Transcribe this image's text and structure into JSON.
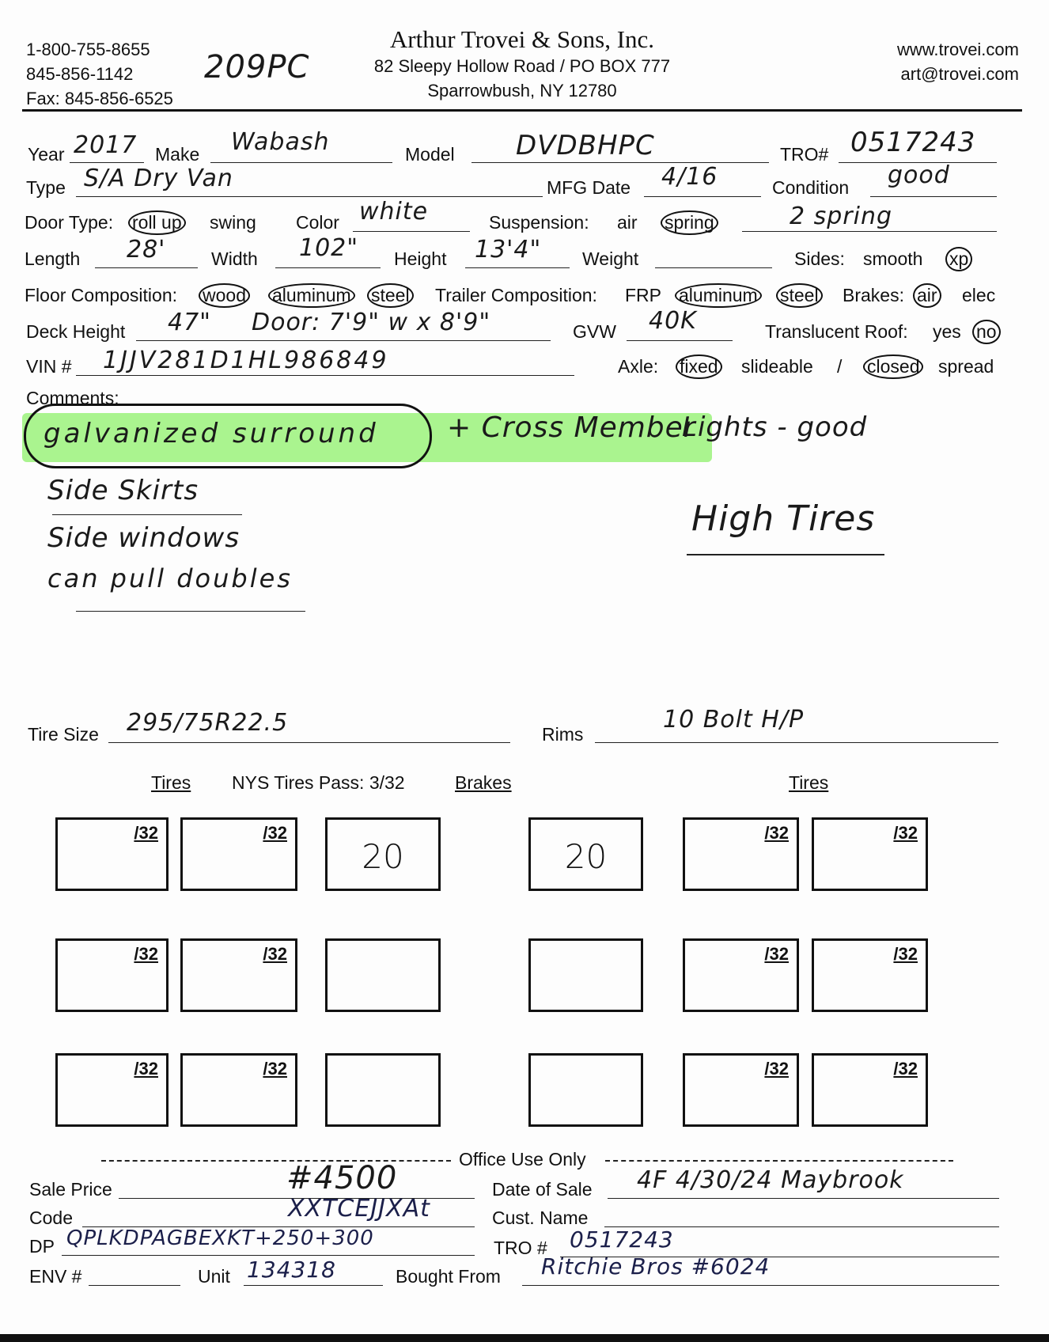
{
  "header": {
    "phone1": "1-800-755-8655",
    "phone2": "845-856-1142",
    "fax": "Fax: 845-856-6525",
    "handwritten_code": "209PC",
    "company": "Arthur Trovei & Sons, Inc.",
    "address1": "82 Sleepy Hollow Road / PO BOX 777",
    "address2": "Sparrowbush, NY 12780",
    "website": "www.trovei.com",
    "email": "art@trovei.com"
  },
  "fields": {
    "year": {
      "label": "Year",
      "value": "2017"
    },
    "make": {
      "label": "Make",
      "value": "Wabash"
    },
    "model": {
      "label": "Model",
      "value": "DVDBHPC"
    },
    "tro": {
      "label": "TRO#",
      "value": "0517243"
    },
    "type": {
      "label": "Type",
      "value": "S/A Dry Van"
    },
    "mfg_date": {
      "label": "MFG Date",
      "value": "4/16"
    },
    "condition": {
      "label": "Condition",
      "value": "good"
    },
    "door_type": {
      "label": "Door Type:",
      "options": [
        "roll up",
        "swing"
      ],
      "selected": "roll up"
    },
    "color": {
      "label": "Color",
      "value": "white"
    },
    "suspension": {
      "label": "Suspension:",
      "options": [
        "air",
        "spring"
      ],
      "selected": "spring",
      "value": "2 spring"
    },
    "length": {
      "label": "Length",
      "value": "28'"
    },
    "width": {
      "label": "Width",
      "value": "102\""
    },
    "height": {
      "label": "Height",
      "value": "13'4\""
    },
    "weight": {
      "label": "Weight",
      "value": ""
    },
    "sides": {
      "label": "Sides:",
      "options": [
        "smooth",
        "xp"
      ],
      "selected": "xp"
    },
    "floor": {
      "label": "Floor Composition:",
      "options": [
        "wood",
        "aluminum",
        "steel"
      ],
      "selected": [
        "wood",
        "aluminum",
        "steel"
      ]
    },
    "trailer_comp": {
      "label": "Trailer Composition:",
      "options": [
        "FRP",
        "aluminum",
        "steel"
      ],
      "selected": [
        "aluminum",
        "steel"
      ]
    },
    "brakes": {
      "label": "Brakes:",
      "options": [
        "air",
        "elec"
      ],
      "selected": "air"
    },
    "deck_height": {
      "label": "Deck Height",
      "value": "47\"",
      "door_note": "Door: 7'9\" w x 8'9\""
    },
    "gvw": {
      "label": "GVW",
      "value": "40K"
    },
    "translucent_roof": {
      "label": "Translucent Roof:",
      "options": [
        "yes",
        "no"
      ],
      "selected": "no"
    },
    "vin": {
      "label": "VIN #",
      "value": "1JJV281D1HL986849"
    },
    "axle": {
      "label": "Axle:",
      "options": [
        "fixed",
        "slideable",
        "/",
        "closed",
        "spread"
      ],
      "selected": [
        "fixed",
        "closed"
      ]
    }
  },
  "comments": {
    "label": "Comments:",
    "highlighted": "galvanized surround",
    "cross": "+ Cross Member",
    "lights": "Lights - good",
    "lines": [
      "Side Skirts",
      "Side windows",
      "can pull doubles"
    ],
    "right_note": "High Tires",
    "highlight_color": "#8ef06a"
  },
  "tires": {
    "size_label": "Tire Size",
    "size_value": "295/75R22.5",
    "rims_label": "Rims",
    "rims_value": "10 Bolt H/P",
    "col_tires_left": "Tires",
    "nys_pass": "NYS Tires Pass: 3/32",
    "col_brakes": "Brakes",
    "col_tires_right": "Tires",
    "unit": "/32",
    "rows": [
      {
        "brake_left": "20",
        "brake_right": "20"
      },
      {
        "brake_left": "",
        "brake_right": ""
      },
      {
        "brake_left": "",
        "brake_right": ""
      }
    ]
  },
  "office": {
    "title": "Office Use Only",
    "sale_price": {
      "label": "Sale Price",
      "value": "#4500"
    },
    "date_of_sale": {
      "label": "Date of Sale",
      "value": "4F 4/30/24 Maybrook"
    },
    "code": {
      "label": "Code",
      "value": "XXTCEJJXAt"
    },
    "cust_name": {
      "label": "Cust. Name",
      "value": ""
    },
    "dp": {
      "label": "DP",
      "value": "QPLKDPAGBEXKT+250+300"
    },
    "tro": {
      "label": "TRO #",
      "value": "0517243"
    },
    "env": {
      "label": "ENV #",
      "value": ""
    },
    "unit": {
      "label": "Unit",
      "value": "134318"
    },
    "bought_from": {
      "label": "Bought From",
      "value": "Ritchie Bros #6024"
    }
  }
}
